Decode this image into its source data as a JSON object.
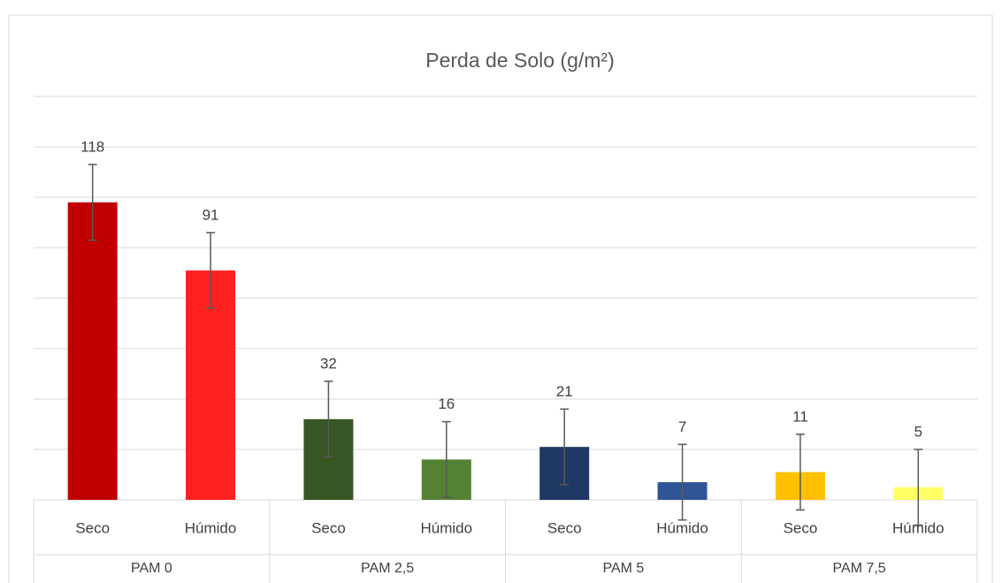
{
  "chart_data": {
    "type": "bar",
    "title": "Perda de Solo (g/m²)",
    "categories": [
      "Seco",
      "Húmido",
      "Seco",
      "Húmido",
      "Seco",
      "Húmido",
      "Seco",
      "Húmido"
    ],
    "groups": [
      "PAM 0",
      "PAM 2,5",
      "PAM 5",
      "PAM 7,5"
    ],
    "values": [
      118,
      91,
      32,
      16,
      21,
      7,
      11,
      5
    ],
    "errors": [
      15,
      15,
      15,
      15,
      15,
      15,
      15,
      15
    ],
    "colors": [
      "#c00000",
      "#ff2020",
      "#375623",
      "#548235",
      "#203864",
      "#2f5597",
      "#ffc000",
      "#ffff66"
    ],
    "ylim": [
      0,
      160
    ],
    "yticks": [
      0,
      20,
      40,
      60,
      80,
      100,
      120,
      140,
      160
    ],
    "grid": true
  }
}
